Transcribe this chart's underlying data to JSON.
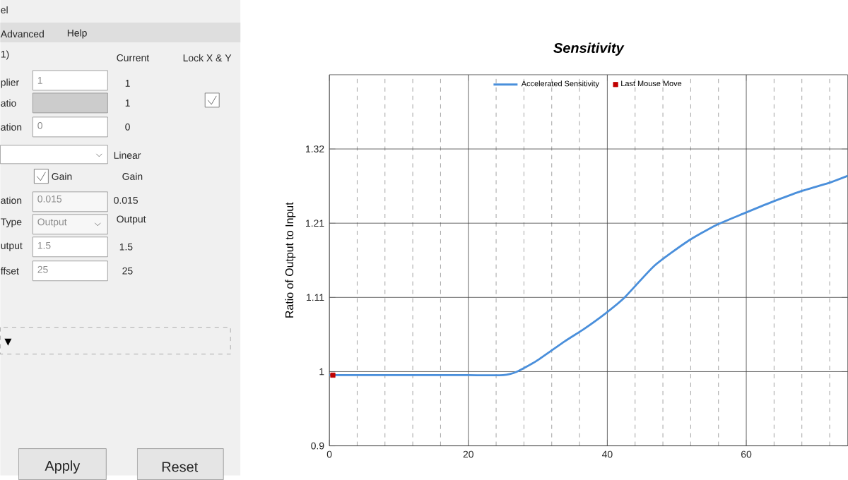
{
  "chart_data": {
    "type": "line",
    "title": "Sensitivity",
    "ylabel": "Ratio of Output to Input",
    "xlim": [
      0,
      74.6
    ],
    "ylim": [
      0.9,
      1.425
    ],
    "xticks": [
      0,
      {
        "value": 4,
        "label": null
      },
      {
        "value": 8,
        "label": null
      },
      {
        "value": 12,
        "label": null
      },
      {
        "value": 16,
        "label": null
      },
      20,
      {
        "value": 24,
        "label": null
      },
      {
        "value": 28,
        "label": null
      },
      {
        "value": 32,
        "label": null
      },
      {
        "value": 36,
        "label": null
      },
      40,
      {
        "value": 44,
        "label": null
      },
      {
        "value": 48,
        "label": null
      },
      {
        "value": 52,
        "label": null
      },
      {
        "value": 56,
        "label": null
      },
      60,
      {
        "value": 64,
        "label": null
      },
      {
        "value": 68,
        "label": null
      },
      {
        "value": 72,
        "label": null
      }
    ],
    "yticks": [
      0.9,
      {
        "value": 1.005,
        "label": "1"
      },
      1.11,
      {
        "value": 1.215,
        "label": "1.21"
      },
      1.32
    ],
    "grid": true,
    "legend": "top",
    "series": [
      {
        "name": "Accelerated Sensitivity",
        "color": "#4a8fdb",
        "marker": "none",
        "x": [
          0,
          5,
          10,
          15,
          20,
          25,
          27,
          29.8,
          33.9,
          36.6,
          39.7,
          42.4,
          46.8,
          51.5,
          55.6,
          59.7,
          63.7,
          67.8,
          71.9,
          74.6
        ],
        "values": [
          1.0,
          1.0,
          1.0,
          1.0,
          1.0,
          1.0,
          1.005,
          1.02,
          1.048,
          1.065,
          1.087,
          1.109,
          1.155,
          1.189,
          1.212,
          1.229,
          1.245,
          1.26,
          1.272,
          1.282
        ]
      },
      {
        "name": "Last Mouse Move",
        "color": "#c00000",
        "type": "scatter",
        "marker": "square",
        "x": [
          0.5
        ],
        "values": [
          1.0
        ]
      }
    ],
    "annotations": [
      "el",
      "Advanced",
      "Help",
      "1)",
      "Current",
      "Lock X & Y",
      "plier",
      "1",
      "1",
      "atio",
      "1",
      "ation",
      "0",
      "0",
      "Linear",
      "Gain",
      "Gain",
      "ation",
      "0.015",
      "0.015",
      "Type",
      "Output",
      "Output",
      "utput",
      "1.5",
      "1.5",
      "ffset",
      "25",
      "25",
      "Apply",
      "Reset"
    ]
  }
}
